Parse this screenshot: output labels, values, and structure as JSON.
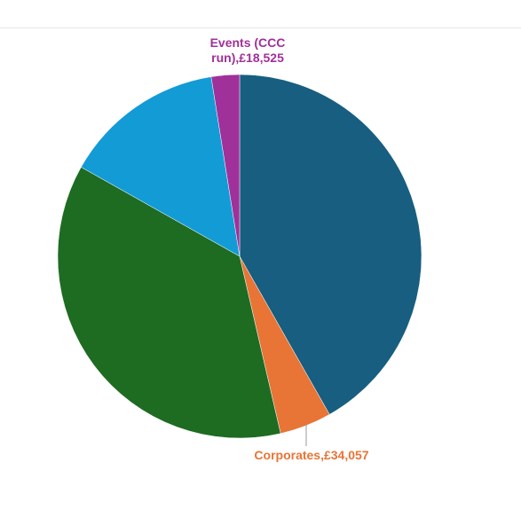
{
  "chart_data": {
    "type": "pie",
    "values": [
      309000,
      34057,
      272000,
      106000,
      18525
    ],
    "value_labels": [
      null,
      "Corporates,£34,057",
      null,
      null,
      "Events (CCC run),£18,525"
    ],
    "colors": [
      "#175e80",
      "#e87436",
      "#1e6b22",
      "#139bd6",
      "#a0309a"
    ]
  }
}
